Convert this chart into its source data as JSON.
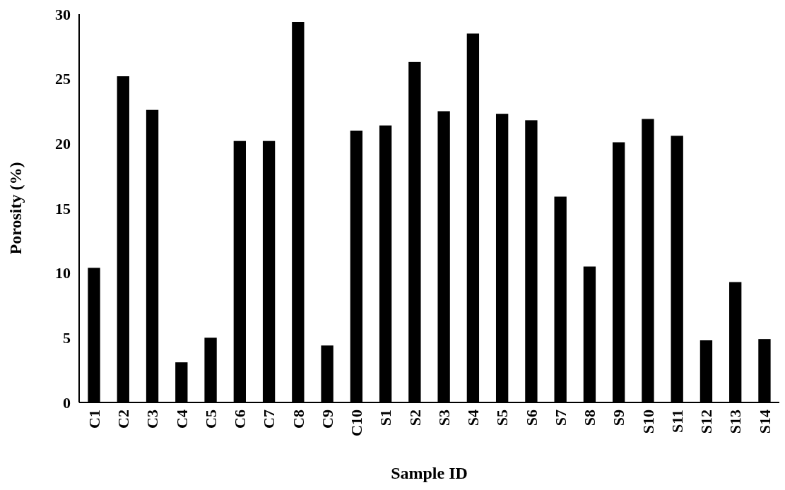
{
  "chart_data": {
    "type": "bar",
    "xlabel": "Sample ID",
    "ylabel": "Porosity (%)",
    "categories": [
      "C1",
      "C2",
      "C3",
      "C4",
      "C5",
      "C6",
      "C7",
      "C8",
      "C9",
      "C10",
      "S1",
      "S2",
      "S3",
      "S4",
      "S5",
      "S6",
      "S7",
      "S8",
      "S9",
      "S10",
      "S11",
      "S12",
      "S13",
      "S14"
    ],
    "values": [
      10.4,
      25.2,
      22.6,
      3.1,
      5.0,
      20.2,
      20.2,
      29.4,
      4.4,
      21.0,
      21.4,
      26.3,
      22.5,
      28.5,
      22.3,
      21.8,
      15.9,
      10.5,
      20.1,
      21.9,
      20.6,
      4.8,
      9.3,
      4.9
    ],
    "color": "#000000",
    "ylim": [
      0,
      30
    ],
    "yticks": [
      0,
      5,
      10,
      15,
      20,
      25,
      30
    ],
    "grid": false
  }
}
